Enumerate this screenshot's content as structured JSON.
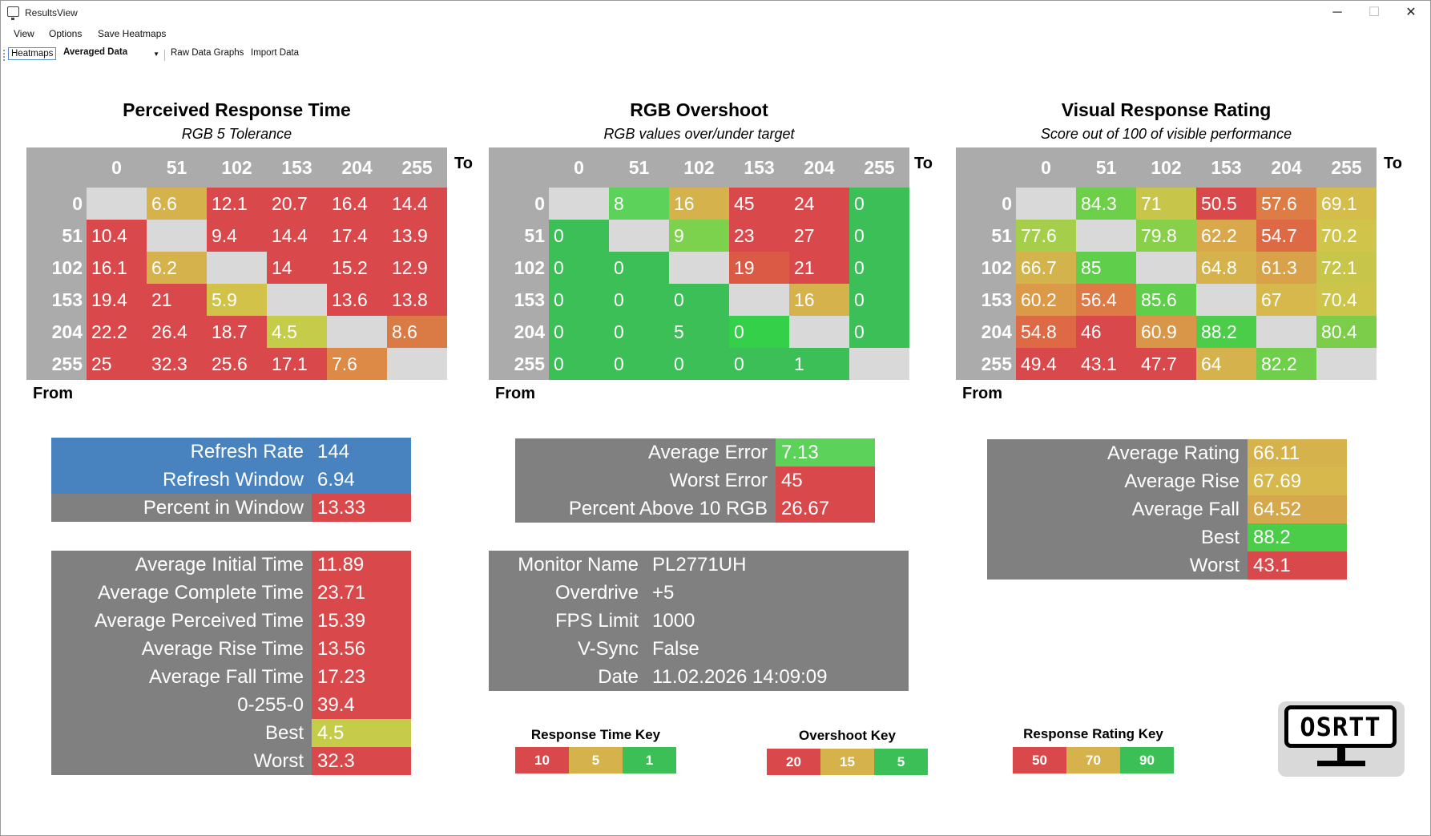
{
  "window": {
    "title": "ResultsView",
    "controls": {
      "minimize": "─",
      "maximize": "☐",
      "close": "✕"
    }
  },
  "menu": {
    "items": [
      "View",
      "Options",
      "Save Heatmaps"
    ]
  },
  "toolbar": {
    "heatmaps": "Heatmaps",
    "averaged_data": "Averaged Data",
    "raw_data_graphs": "Raw Data Graphs",
    "import_data": "Import Data"
  },
  "axis": {
    "to": "To",
    "from": "From",
    "values": [
      "0",
      "51",
      "102",
      "153",
      "204",
      "255"
    ]
  },
  "heatmaps": {
    "response": {
      "title": "Perceived Response Time",
      "subtitle": "RGB 5 Tolerance",
      "rows": [
        [
          "",
          "6.6",
          "12.1",
          "20.7",
          "16.4",
          "14.4"
        ],
        [
          "10.4",
          "",
          "9.4",
          "14.4",
          "17.4",
          "13.9"
        ],
        [
          "16.1",
          "6.2",
          "",
          "14",
          "15.2",
          "12.9"
        ],
        [
          "19.4",
          "21",
          "5.9",
          "",
          "13.6",
          "13.8"
        ],
        [
          "22.2",
          "26.4",
          "18.7",
          "4.5",
          "",
          "8.6"
        ],
        [
          "25",
          "32.3",
          "25.6",
          "17.1",
          "7.6",
          ""
        ]
      ],
      "colors": [
        [
          "#d9d9d9",
          "#d6b24c",
          "#d9484a",
          "#d9484a",
          "#d9484a",
          "#d9484a"
        ],
        [
          "#d9484a",
          "#d9d9d9",
          "#d9484a",
          "#d9484a",
          "#d9484a",
          "#d9484a"
        ],
        [
          "#d9484a",
          "#d6b24c",
          "#d9d9d9",
          "#d9484a",
          "#d9484a",
          "#d9484a"
        ],
        [
          "#d9484a",
          "#d9484a",
          "#d3c24a",
          "#d9d9d9",
          "#d9484a",
          "#d9484a"
        ],
        [
          "#d9484a",
          "#d9484a",
          "#d9484a",
          "#c4cc4a",
          "#d9d9d9",
          "#da7a45"
        ],
        [
          "#d9484a",
          "#d9484a",
          "#d9484a",
          "#d9484a",
          "#dc8a45",
          "#d9d9d9"
        ]
      ]
    },
    "overshoot": {
      "title": "RGB Overshoot",
      "subtitle": "RGB values over/under target",
      "rows": [
        [
          "",
          "8",
          "16",
          "45",
          "24",
          "0"
        ],
        [
          "0",
          "",
          "9",
          "23",
          "27",
          "0"
        ],
        [
          "0",
          "0",
          "",
          "19",
          "21",
          "0"
        ],
        [
          "0",
          "0",
          "0",
          "",
          "16",
          "0"
        ],
        [
          "0",
          "0",
          "5",
          "0",
          "",
          "0"
        ],
        [
          "0",
          "0",
          "0",
          "0",
          "1",
          ""
        ]
      ],
      "colors": [
        [
          "#d9d9d9",
          "#5cd25a",
          "#d6b24c",
          "#d9484a",
          "#d9484a",
          "#3dbf58"
        ],
        [
          "#3dbf58",
          "#d9d9d9",
          "#7cd24c",
          "#d9484a",
          "#d9484a",
          "#3dbf58"
        ],
        [
          "#3dbf58",
          "#3dbf58",
          "#d9d9d9",
          "#da5a45",
          "#d9484a",
          "#3dbf58"
        ],
        [
          "#3dbf58",
          "#3dbf58",
          "#3dbf58",
          "#d9d9d9",
          "#d6b24c",
          "#3dbf58"
        ],
        [
          "#3dbf58",
          "#3dbf58",
          "#3dbf58",
          "#35d04a",
          "#d9d9d9",
          "#3dbf58"
        ],
        [
          "#3dbf58",
          "#3dbf58",
          "#3dbf58",
          "#3dbf58",
          "#3dbf58",
          "#d9d9d9"
        ]
      ]
    },
    "rating": {
      "title": "Visual Response Rating",
      "subtitle": "Score out of 100 of visible performance",
      "rows": [
        [
          "",
          "84.3",
          "71",
          "50.5",
          "57.6",
          "69.1"
        ],
        [
          "77.6",
          "",
          "79.8",
          "62.2",
          "54.7",
          "70.2"
        ],
        [
          "66.7",
          "85",
          "",
          "64.8",
          "61.3",
          "72.1"
        ],
        [
          "60.2",
          "56.4",
          "85.6",
          "",
          "67",
          "70.4"
        ],
        [
          "54.8",
          "46",
          "60.9",
          "88.2",
          "",
          "80.4"
        ],
        [
          "49.4",
          "43.1",
          "47.7",
          "64",
          "82.2",
          ""
        ]
      ],
      "colors": [
        [
          "#d9d9d9",
          "#6ecf4a",
          "#c8c64a",
          "#d9484a",
          "#de7c45",
          "#d5bd4b"
        ],
        [
          "#a5cf4a",
          "#d9d9d9",
          "#88cf4a",
          "#d9a84a",
          "#de6945",
          "#d1c44b"
        ],
        [
          "#d3b34b",
          "#5fce4a",
          "#d9d9d9",
          "#d6b24c",
          "#d9a24a",
          "#c8c64a"
        ],
        [
          "#da9a48",
          "#de7a45",
          "#5fce4a",
          "#d9d9d9",
          "#d6b84c",
          "#cdc54a"
        ],
        [
          "#de6945",
          "#d9484a",
          "#da9648",
          "#4ccd4a",
          "#d9d9d9",
          "#7ccd4a"
        ],
        [
          "#d9484a",
          "#d9484a",
          "#d9484a",
          "#d6b24c",
          "#70cf4a",
          "#d9d9d9"
        ]
      ]
    }
  },
  "refresh_box": [
    {
      "label": "Refresh Rate",
      "value": "144",
      "bg": "#4882bf",
      "vbg": "#4882bf"
    },
    {
      "label": "Refresh Window",
      "value": "6.94",
      "bg": "#4882bf",
      "vbg": "#4882bf"
    },
    {
      "label": "Percent in Window",
      "value": "13.33",
      "bg": "#808080",
      "vbg": "#d9484a"
    }
  ],
  "time_box": [
    {
      "label": "Average Initial Time",
      "value": "11.89",
      "vbg": "#d9484a"
    },
    {
      "label": "Average Complete Time",
      "value": "23.71",
      "vbg": "#d9484a"
    },
    {
      "label": "Average Perceived Time",
      "value": "15.39",
      "vbg": "#d9484a"
    },
    {
      "label": "Average Rise Time",
      "value": "13.56",
      "vbg": "#d9484a"
    },
    {
      "label": "Average Fall Time",
      "value": "17.23",
      "vbg": "#d9484a"
    },
    {
      "label": "0-255-0",
      "value": "39.4",
      "vbg": "#d9484a"
    },
    {
      "label": "Best",
      "value": "4.5",
      "vbg": "#c4cc4a"
    },
    {
      "label": "Worst",
      "value": "32.3",
      "vbg": "#d9484a"
    }
  ],
  "error_box": [
    {
      "label": "Average Error",
      "value": "7.13",
      "vbg": "#5cd25a"
    },
    {
      "label": "Worst Error",
      "value": "45",
      "vbg": "#d9484a"
    },
    {
      "label": "Percent Above 10 RGB",
      "value": "26.67",
      "vbg": "#d9484a"
    }
  ],
  "monitor_box": [
    {
      "label": "Monitor Name",
      "value": "PL2771UH"
    },
    {
      "label": "Overdrive",
      "value": "+5"
    },
    {
      "label": "FPS Limit",
      "value": "1000"
    },
    {
      "label": "V-Sync",
      "value": "False"
    },
    {
      "label": "Date",
      "value": "11.02.2026 14:09:09"
    }
  ],
  "rating_box": [
    {
      "label": "Average Rating",
      "value": "66.11",
      "vbg": "#d6b24c"
    },
    {
      "label": "Average Rise",
      "value": "67.69",
      "vbg": "#d6b84c"
    },
    {
      "label": "Average Fall",
      "value": "64.52",
      "vbg": "#d6a84c"
    },
    {
      "label": "Best",
      "value": "88.2",
      "vbg": "#4ccd4a"
    },
    {
      "label": "Worst",
      "value": "43.1",
      "vbg": "#d9484a"
    }
  ],
  "keys": {
    "response": {
      "title": "Response Time Key",
      "values": [
        "10",
        "5",
        "1"
      ],
      "colors": [
        "#d9484a",
        "#d6b24c",
        "#3dbf58"
      ]
    },
    "overshoot": {
      "title": "Overshoot Key",
      "values": [
        "20",
        "15",
        "5"
      ],
      "colors": [
        "#d9484a",
        "#d6b24c",
        "#3dbf58"
      ]
    },
    "rating": {
      "title": "Response Rating Key",
      "values": [
        "50",
        "70",
        "90"
      ],
      "colors": [
        "#d9484a",
        "#d6b24c",
        "#3dbf58"
      ]
    }
  },
  "logo": {
    "text": "OSRTT"
  }
}
